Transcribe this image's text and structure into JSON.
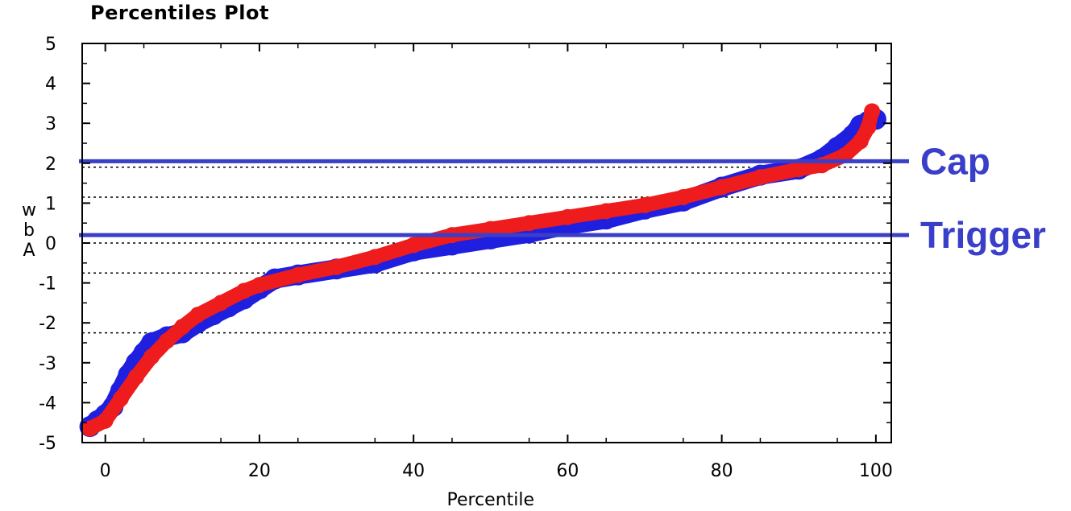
{
  "chart_data": {
    "type": "scatter",
    "title": "Percentiles Plot",
    "xlabel": "Percentile",
    "ylabel_chars": [
      "w",
      "b",
      "A"
    ],
    "xlim": [
      -3,
      102
    ],
    "ylim": [
      -5,
      5
    ],
    "x_ticks": [
      0,
      20,
      40,
      60,
      80,
      100
    ],
    "y_ticks": [
      5,
      4,
      3,
      2,
      1,
      0,
      -1,
      -2,
      -3,
      -4,
      -5
    ],
    "grid": "dotted horizontal reference lines",
    "dotted_lines_y": [
      1.9,
      1.15,
      0.0,
      -0.75,
      -2.25
    ],
    "series": [
      {
        "color": "#1f1fe0",
        "points": [
          [
            -2,
            -4.6
          ],
          [
            -1,
            -4.45
          ],
          [
            0,
            -4.3
          ],
          [
            1,
            -4.1
          ],
          [
            2,
            -3.7
          ],
          [
            3,
            -3.3
          ],
          [
            4,
            -3.0
          ],
          [
            5,
            -2.75
          ],
          [
            6,
            -2.5
          ],
          [
            8,
            -2.35
          ],
          [
            10,
            -2.25
          ],
          [
            12,
            -2.0
          ],
          [
            14,
            -1.8
          ],
          [
            16,
            -1.6
          ],
          [
            18,
            -1.4
          ],
          [
            20,
            -1.15
          ],
          [
            22,
            -0.9
          ],
          [
            25,
            -0.8
          ],
          [
            30,
            -0.65
          ],
          [
            35,
            -0.5
          ],
          [
            40,
            -0.2
          ],
          [
            45,
            -0.05
          ],
          [
            50,
            0.1
          ],
          [
            55,
            0.25
          ],
          [
            60,
            0.45
          ],
          [
            65,
            0.6
          ],
          [
            70,
            0.85
          ],
          [
            75,
            1.05
          ],
          [
            80,
            1.4
          ],
          [
            85,
            1.7
          ],
          [
            90,
            1.85
          ],
          [
            93,
            2.1
          ],
          [
            95,
            2.4
          ],
          [
            97,
            2.7
          ],
          [
            98,
            2.95
          ],
          [
            99,
            3.05
          ],
          [
            100,
            3.1
          ]
        ]
      },
      {
        "color": "#ee1c1c",
        "points": [
          [
            -2,
            -4.65
          ],
          [
            0,
            -4.45
          ],
          [
            2,
            -3.9
          ],
          [
            4,
            -3.35
          ],
          [
            6,
            -2.85
          ],
          [
            8,
            -2.45
          ],
          [
            10,
            -2.1
          ],
          [
            12,
            -1.8
          ],
          [
            15,
            -1.5
          ],
          [
            18,
            -1.2
          ],
          [
            20,
            -1.05
          ],
          [
            25,
            -0.8
          ],
          [
            30,
            -0.6
          ],
          [
            35,
            -0.35
          ],
          [
            40,
            -0.05
          ],
          [
            45,
            0.2
          ],
          [
            50,
            0.35
          ],
          [
            55,
            0.5
          ],
          [
            60,
            0.65
          ],
          [
            65,
            0.8
          ],
          [
            70,
            0.95
          ],
          [
            75,
            1.15
          ],
          [
            80,
            1.4
          ],
          [
            85,
            1.65
          ],
          [
            90,
            1.85
          ],
          [
            93,
            1.95
          ],
          [
            96,
            2.2
          ],
          [
            98,
            2.55
          ],
          [
            99,
            2.9
          ],
          [
            99.5,
            3.3
          ]
        ]
      }
    ],
    "reference_lines": [
      {
        "label": "Cap",
        "y": 2.05,
        "color": "#3a3fc9"
      },
      {
        "label": "Trigger",
        "y": 0.2,
        "color": "#3a3fc9"
      }
    ]
  }
}
